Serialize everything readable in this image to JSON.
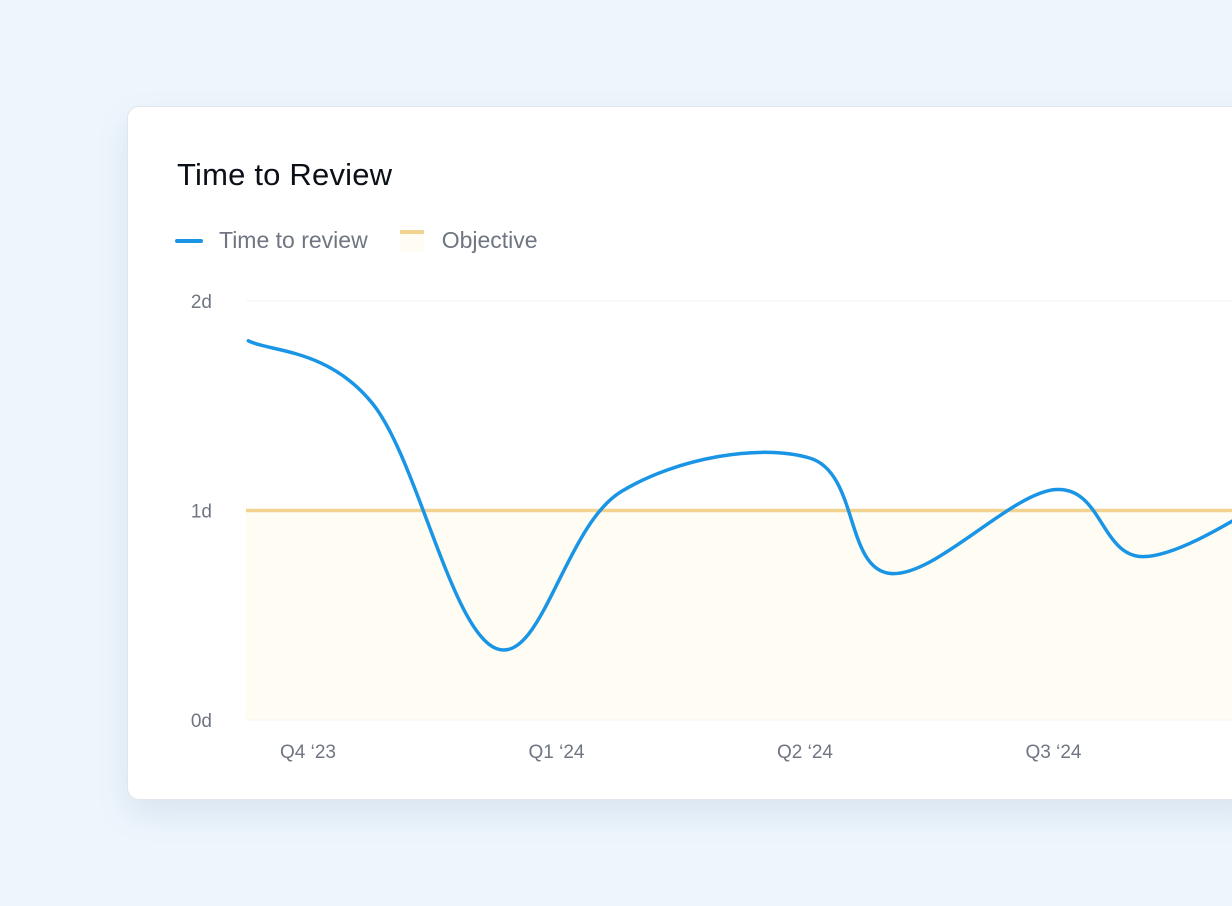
{
  "chart_data": {
    "type": "line",
    "title": "Time to Review",
    "xlabel": "",
    "ylabel": "",
    "x_ticks": [
      "Q4 ‘23",
      "Q1 ‘24",
      "Q2 ‘24",
      "Q3 ‘24"
    ],
    "y_ticks": [
      "0d",
      "1d",
      "2d"
    ],
    "ylim": [
      0,
      2
    ],
    "xlim": [
      -0.24,
      3.94
    ],
    "grid": false,
    "legend_position": "top-left",
    "series": [
      {
        "name": "Time to review",
        "color": "#1a95e6",
        "points": [
          {
            "x": -0.24,
            "y": 1.81
          },
          {
            "x": 0.26,
            "y": 1.51
          },
          {
            "x": 0.76,
            "y": 0.34
          },
          {
            "x": 1.26,
            "y": 1.09
          },
          {
            "x": 2.02,
            "y": 1.25
          },
          {
            "x": 2.34,
            "y": 0.7
          },
          {
            "x": 3.01,
            "y": 1.1
          },
          {
            "x": 3.36,
            "y": 0.78
          },
          {
            "x": 3.94,
            "y": 1.1
          }
        ]
      }
    ],
    "objective": {
      "name": "Objective",
      "value": 1.0,
      "line_color": "#f1d28f",
      "fill_color": "#fffdf3"
    },
    "highlight_region": {
      "x_start": 3.74,
      "color": "#f6fafe"
    }
  }
}
